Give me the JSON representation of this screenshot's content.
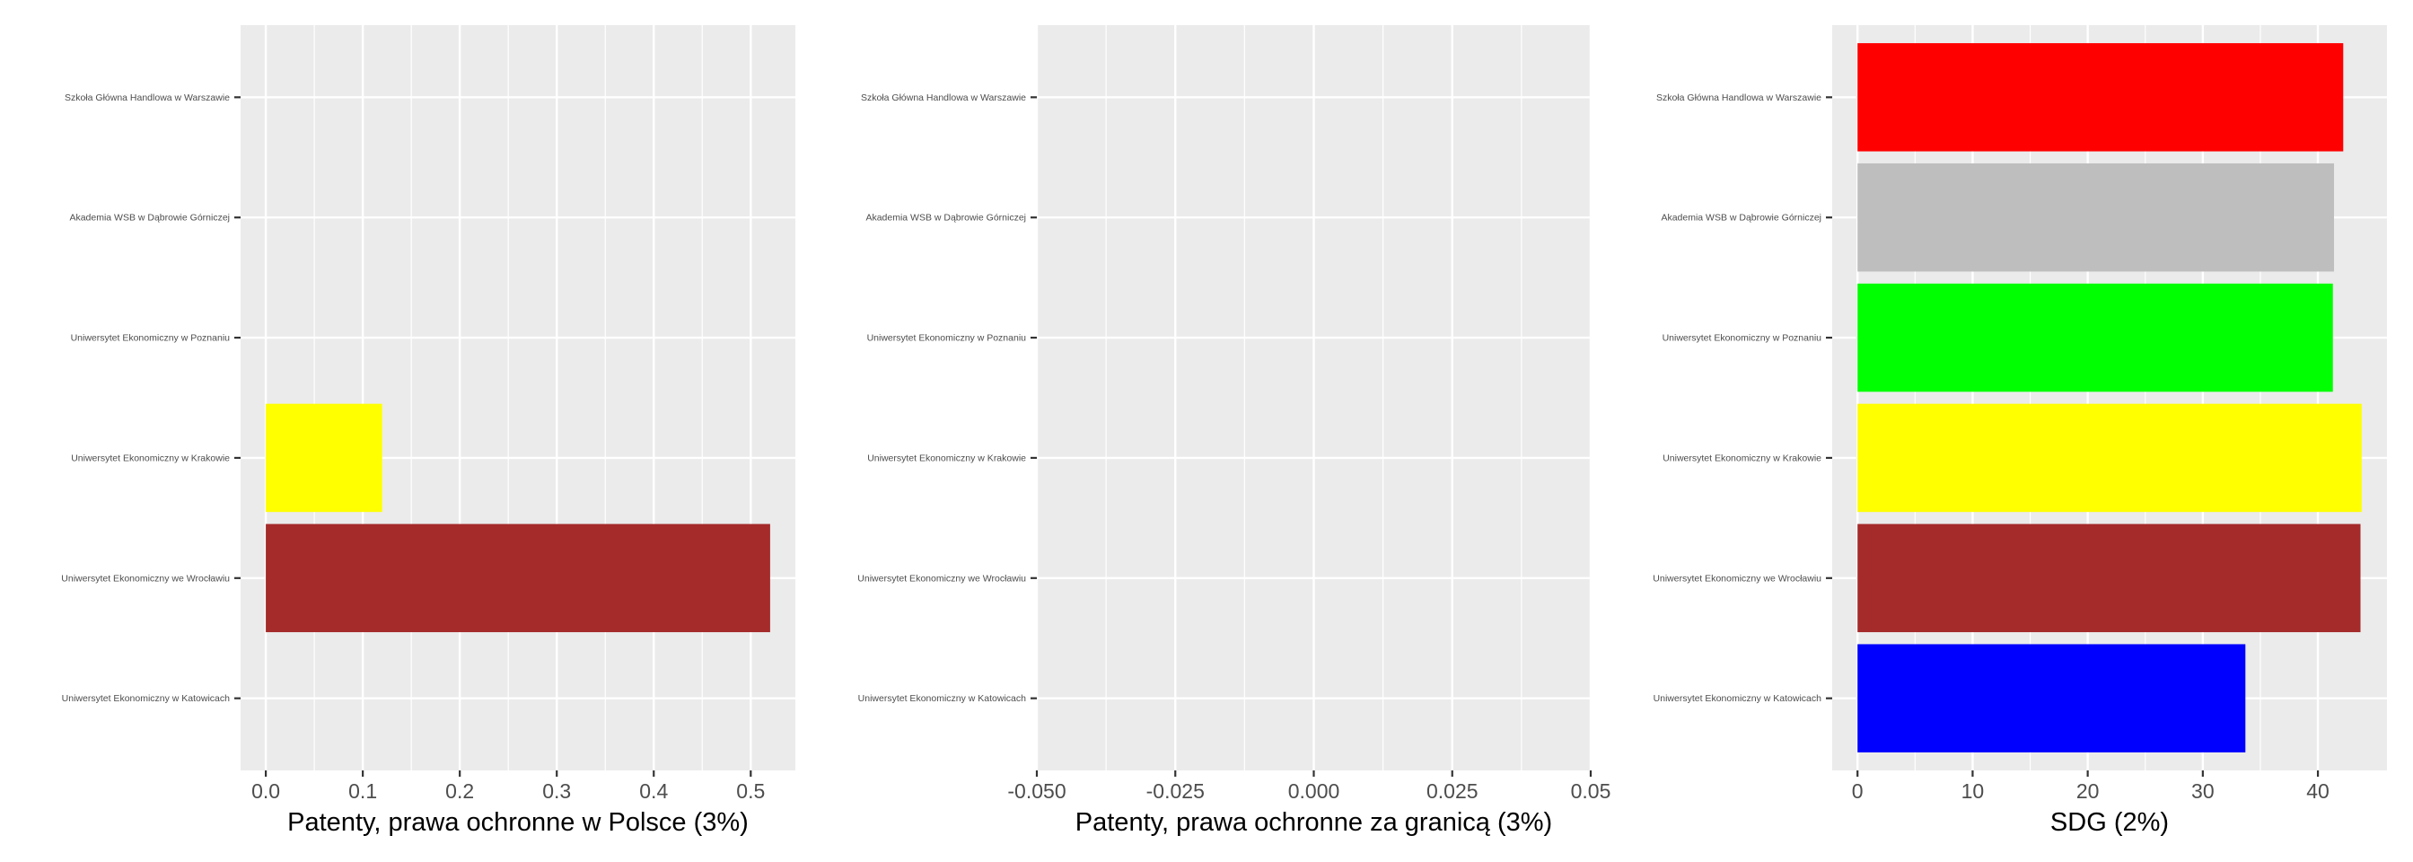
{
  "chart_data": [
    {
      "type": "bar",
      "orientation": "horizontal",
      "xlabel": "Patenty, prawa ochronne w Polsce (3%)",
      "categories": [
        "Szkoła Główna Handlowa w Warszawie",
        "Akademia WSB w Dąbrowie Górniczej",
        "Uniwersytet Ekonomiczny w Poznaniu",
        "Uniwersytet Ekonomiczny w Krakowie",
        "Uniwersytet Ekonomiczny we Wrocławiu",
        "Uniwersytet Ekonomiczny w Katowicach"
      ],
      "values": [
        0,
        0,
        0,
        0.12,
        0.52,
        0
      ],
      "colors": [
        "#ff0000",
        "#bebebe",
        "#00ff00",
        "#ffff00",
        "#a52a2a",
        "#0000ff"
      ],
      "xlim": [
        -0.026,
        0.546
      ],
      "ticks": [
        0.0,
        0.1,
        0.2,
        0.3,
        0.4,
        0.5
      ],
      "tick_labels": [
        "0.0",
        "0.1",
        "0.2",
        "0.3",
        "0.4",
        "0.5"
      ],
      "grid": true
    },
    {
      "type": "bar",
      "orientation": "horizontal",
      "xlabel": "Patenty, prawa ochronne za granicą (3%)",
      "categories": [
        "Szkoła Główna Handlowa w Warszawie",
        "Akademia WSB w Dąbrowie Górniczej",
        "Uniwersytet Ekonomiczny w Poznaniu",
        "Uniwersytet Ekonomiczny w Krakowie",
        "Uniwersytet Ekonomiczny we Wrocławiu",
        "Uniwersytet Ekonomiczny w Katowicach"
      ],
      "values": [
        0,
        0,
        0,
        0,
        0,
        0
      ],
      "colors": [
        "#ff0000",
        "#bebebe",
        "#00ff00",
        "#ffff00",
        "#a52a2a",
        "#0000ff"
      ],
      "xlim": [
        -0.05,
        0.05
      ],
      "ticks": [
        -0.05,
        -0.025,
        0.0,
        0.025,
        0.05
      ],
      "tick_labels": [
        "-0.050",
        "-0.025",
        "0.000",
        "0.025",
        "0.05"
      ],
      "grid": true
    },
    {
      "type": "bar",
      "orientation": "horizontal",
      "xlabel": "SDG (2%)",
      "categories": [
        "Szkoła Główna Handlowa w Warszawie",
        "Akademia WSB w Dąbrowie Górniczej",
        "Uniwersytet Ekonomiczny w Poznaniu",
        "Uniwersytet Ekonomiczny w Krakowie",
        "Uniwersytet Ekonomiczny we Wrocławiu",
        "Uniwersytet Ekonomiczny w Katowicach"
      ],
      "values": [
        42.2,
        41.4,
        41.3,
        43.8,
        43.7,
        33.7
      ],
      "colors": [
        "#ff0000",
        "#bebebe",
        "#00ff00",
        "#ffff00",
        "#a52a2a",
        "#0000ff"
      ],
      "xlim": [
        -2.2,
        46.0
      ],
      "ticks": [
        0,
        10,
        20,
        30,
        40
      ],
      "tick_labels": [
        "0",
        "10",
        "20",
        "30",
        "40"
      ],
      "grid": true
    }
  ]
}
